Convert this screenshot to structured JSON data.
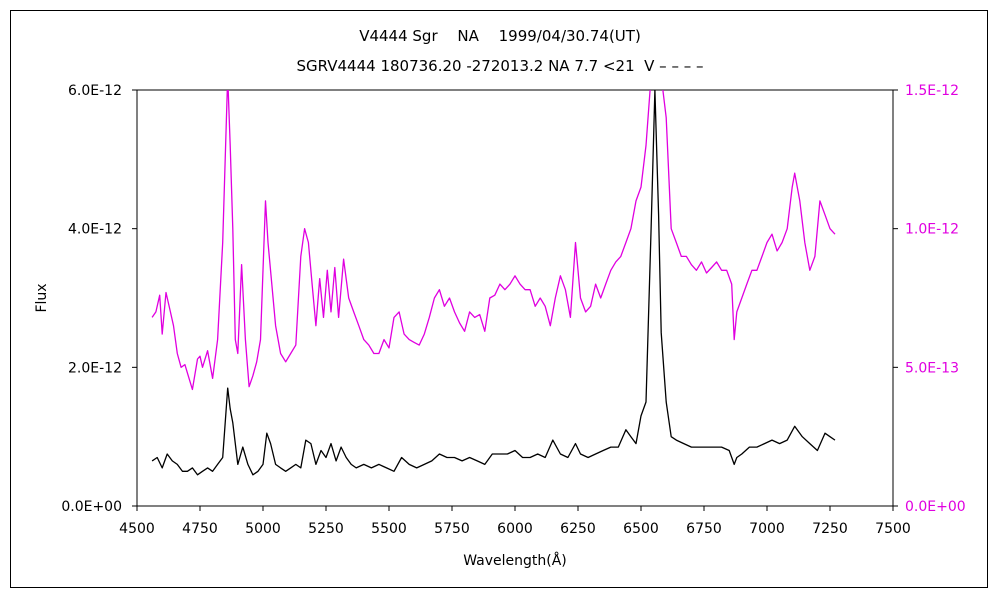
{
  "title_line1": "V4444 Sgr　 NA　 1999/04/30.74(UT)",
  "title_line2": "SGRV4444 180736.20 -272013.2 NA 7.7 <21  V – – – –",
  "chart_data": {
    "type": "line",
    "xlabel": "Wavelength(Å)",
    "ylabel": "Flux",
    "xlim": [
      4500,
      7500
    ],
    "x_ticks": [
      "4500",
      "4750",
      "5000",
      "5250",
      "5500",
      "5750",
      "6000",
      "6250",
      "6500",
      "6750",
      "7000",
      "7250",
      "7500"
    ],
    "x_tick_values": [
      4500,
      4750,
      5000,
      5250,
      5500,
      5750,
      6000,
      6250,
      6500,
      6750,
      7000,
      7250,
      7500
    ],
    "ylim_left": [
      0,
      6e-12
    ],
    "y_ticks_left": [
      "0.0E+00",
      "2.0E-12",
      "4.0E-12",
      "6.0E-12"
    ],
    "y_tick_values_left": [
      0,
      2e-12,
      4e-12,
      6e-12
    ],
    "ylim_right": [
      0,
      1.5e-12
    ],
    "y_ticks_right": [
      "0.0E+00",
      "5.0E-13",
      "1.0E-12",
      "1.5E-12"
    ],
    "y_tick_values_right": [
      0,
      5e-13,
      1e-12,
      1.5e-12
    ],
    "colors": {
      "series_black": "#000000",
      "series_magenta": "#e000e0",
      "right_axis": "#e000e0"
    },
    "series": [
      {
        "axis": "left",
        "color": "#000000",
        "x": [
          4560,
          4580,
          4600,
          4620,
          4640,
          4660,
          4680,
          4700,
          4720,
          4740,
          4760,
          4780,
          4800,
          4820,
          4840,
          4860,
          4870,
          4880,
          4900,
          4920,
          4940,
          4960,
          4980,
          5000,
          5015,
          5030,
          5050,
          5070,
          5090,
          5110,
          5130,
          5150,
          5170,
          5190,
          5210,
          5230,
          5250,
          5270,
          5290,
          5310,
          5330,
          5350,
          5370,
          5400,
          5430,
          5460,
          5490,
          5520,
          5550,
          5580,
          5610,
          5640,
          5670,
          5700,
          5730,
          5760,
          5790,
          5820,
          5850,
          5880,
          5910,
          5940,
          5970,
          6000,
          6030,
          6060,
          6090,
          6120,
          6150,
          6180,
          6210,
          6240,
          6260,
          6290,
          6320,
          6350,
          6380,
          6410,
          6440,
          6460,
          6480,
          6500,
          6520,
          6540,
          6555,
          6570,
          6580,
          6600,
          6620,
          6640,
          6670,
          6700,
          6730,
          6760,
          6790,
          6820,
          6850,
          6870,
          6880,
          6900,
          6930,
          6960,
          6990,
          7020,
          7050,
          7080,
          7110,
          7140,
          7170,
          7200,
          7230,
          7250,
          7270
        ],
        "y": [
          6.5e-13,
          7e-13,
          5.5e-13,
          7.5e-13,
          6.5e-13,
          6e-13,
          5e-13,
          5e-13,
          5.5e-13,
          4.5e-13,
          5e-13,
          5.5e-13,
          5e-13,
          6e-13,
          7e-13,
          1.7e-12,
          1.4e-12,
          1.2e-12,
          6e-13,
          8.5e-13,
          6e-13,
          4.5e-13,
          5e-13,
          6e-13,
          1.05e-12,
          9e-13,
          6e-13,
          5.5e-13,
          5e-13,
          5.5e-13,
          6e-13,
          5.5e-13,
          9.5e-13,
          9e-13,
          6e-13,
          8e-13,
          7e-13,
          9e-13,
          6.5e-13,
          8.5e-13,
          7e-13,
          6e-13,
          5.5e-13,
          6e-13,
          5.5e-13,
          6e-13,
          5.5e-13,
          5e-13,
          7e-13,
          6e-13,
          5.5e-13,
          6e-13,
          6.5e-13,
          7.5e-13,
          7e-13,
          7e-13,
          6.5e-13,
          7e-13,
          6.5e-13,
          6e-13,
          7.5e-13,
          7.5e-13,
          7.5e-13,
          8e-13,
          7e-13,
          7e-13,
          7.5e-13,
          7e-13,
          9.5e-13,
          7.5e-13,
          7e-13,
          9e-13,
          7.5e-13,
          7e-13,
          7.5e-13,
          8e-13,
          8.5e-13,
          8.5e-13,
          1.1e-12,
          1e-12,
          9e-13,
          1.3e-12,
          1.5e-12,
          4e-12,
          6e-12,
          4.2e-12,
          2.5e-12,
          1.5e-12,
          1e-12,
          9.5e-13,
          9e-13,
          8.5e-13,
          8.5e-13,
          8.5e-13,
          8.5e-13,
          8.5e-13,
          8e-13,
          6e-13,
          7e-13,
          7.5e-13,
          8.5e-13,
          8.5e-13,
          9e-13,
          9.5e-13,
          9e-13,
          9.5e-13,
          1.15e-12,
          1e-12,
          9e-13,
          8e-13,
          1.05e-12,
          1e-12,
          9.5e-13
        ]
      },
      {
        "axis": "right",
        "color": "#e000e0",
        "x": [
          4560,
          4575,
          4590,
          4600,
          4615,
          4630,
          4645,
          4660,
          4675,
          4690,
          4700,
          4720,
          4740,
          4750,
          4760,
          4780,
          4800,
          4820,
          4840,
          4860,
          4870,
          4880,
          4890,
          4900,
          4915,
          4930,
          4945,
          4960,
          4975,
          4990,
          5010,
          5020,
          5035,
          5050,
          5070,
          5090,
          5110,
          5130,
          5150,
          5165,
          5180,
          5195,
          5210,
          5225,
          5240,
          5255,
          5270,
          5285,
          5300,
          5320,
          5340,
          5360,
          5380,
          5400,
          5420,
          5440,
          5460,
          5480,
          5500,
          5520,
          5540,
          5560,
          5580,
          5600,
          5620,
          5640,
          5660,
          5680,
          5700,
          5720,
          5740,
          5760,
          5780,
          5800,
          5820,
          5840,
          5860,
          5880,
          5900,
          5920,
          5940,
          5960,
          5980,
          6000,
          6020,
          6040,
          6060,
          6080,
          6100,
          6120,
          6140,
          6160,
          6180,
          6200,
          6220,
          6240,
          6260,
          6280,
          6300,
          6320,
          6340,
          6360,
          6380,
          6400,
          6420,
          6440,
          6460,
          6480,
          6500,
          6520,
          6540,
          6560,
          6580,
          6600,
          6620,
          6640,
          6660,
          6680,
          6700,
          6720,
          6740,
          6760,
          6780,
          6800,
          6820,
          6840,
          6860,
          6870,
          6880,
          6900,
          6920,
          6940,
          6960,
          6980,
          7000,
          7020,
          7040,
          7060,
          7080,
          7100,
          7110,
          7130,
          7150,
          7170,
          7190,
          7210,
          7230,
          7250,
          7270
        ],
        "y": [
          6.8e-13,
          7e-13,
          7.6e-13,
          6.2e-13,
          7.7e-13,
          7.1e-13,
          6.5e-13,
          5.5e-13,
          5e-13,
          5.1e-13,
          4.8e-13,
          4.2e-13,
          5.3e-13,
          5.4e-13,
          5e-13,
          5.6e-13,
          4.6e-13,
          6e-13,
          9.5e-13,
          1.55e-12,
          1.3e-12,
          1e-12,
          6e-13,
          5.5e-13,
          8.7e-13,
          6e-13,
          4.3e-13,
          4.7e-13,
          5.2e-13,
          6e-13,
          1.1e-12,
          9.5e-13,
          8e-13,
          6.5e-13,
          5.5e-13,
          5.2e-13,
          5.5e-13,
          5.8e-13,
          9e-13,
          1e-12,
          9.5e-13,
          8e-13,
          6.5e-13,
          8.2e-13,
          6.8e-13,
          8.5e-13,
          7e-13,
          8.6e-13,
          6.8e-13,
          8.9e-13,
          7.5e-13,
          7e-13,
          6.5e-13,
          6e-13,
          5.8e-13,
          5.5e-13,
          5.5e-13,
          6e-13,
          5.7e-13,
          6.8e-13,
          7e-13,
          6.2e-13,
          6e-13,
          5.9e-13,
          5.8e-13,
          6.2e-13,
          6.8e-13,
          7.5e-13,
          7.8e-13,
          7.2e-13,
          7.5e-13,
          7e-13,
          6.6e-13,
          6.3e-13,
          7e-13,
          6.8e-13,
          6.9e-13,
          6.3e-13,
          7.5e-13,
          7.6e-13,
          8e-13,
          7.8e-13,
          8e-13,
          8.3e-13,
          8e-13,
          7.8e-13,
          7.8e-13,
          7.2e-13,
          7.5e-13,
          7.2e-13,
          6.5e-13,
          7.5e-13,
          8.3e-13,
          7.8e-13,
          6.8e-13,
          9.5e-13,
          7.5e-13,
          7e-13,
          7.2e-13,
          8e-13,
          7.5e-13,
          8e-13,
          8.5e-13,
          8.8e-13,
          9e-13,
          9.5e-13,
          1e-12,
          1.1e-12,
          1.15e-12,
          1.3e-12,
          1.55e-12,
          1.65e-12,
          1.55e-12,
          1.4e-12,
          1e-12,
          9.5e-13,
          9e-13,
          9e-13,
          8.7e-13,
          8.5e-13,
          8.8e-13,
          8.4e-13,
          8.6e-13,
          8.8e-13,
          8.5e-13,
          8.5e-13,
          8e-13,
          6e-13,
          7e-13,
          7.5e-13,
          8e-13,
          8.5e-13,
          8.5e-13,
          9e-13,
          9.5e-13,
          9.8e-13,
          9.2e-13,
          9.5e-13,
          1e-12,
          1.15e-12,
          1.2e-12,
          1.1e-12,
          9.5e-13,
          8.5e-13,
          9e-13,
          1.1e-12,
          1.05e-12,
          1e-12,
          9.8e-13
        ]
      }
    ]
  }
}
